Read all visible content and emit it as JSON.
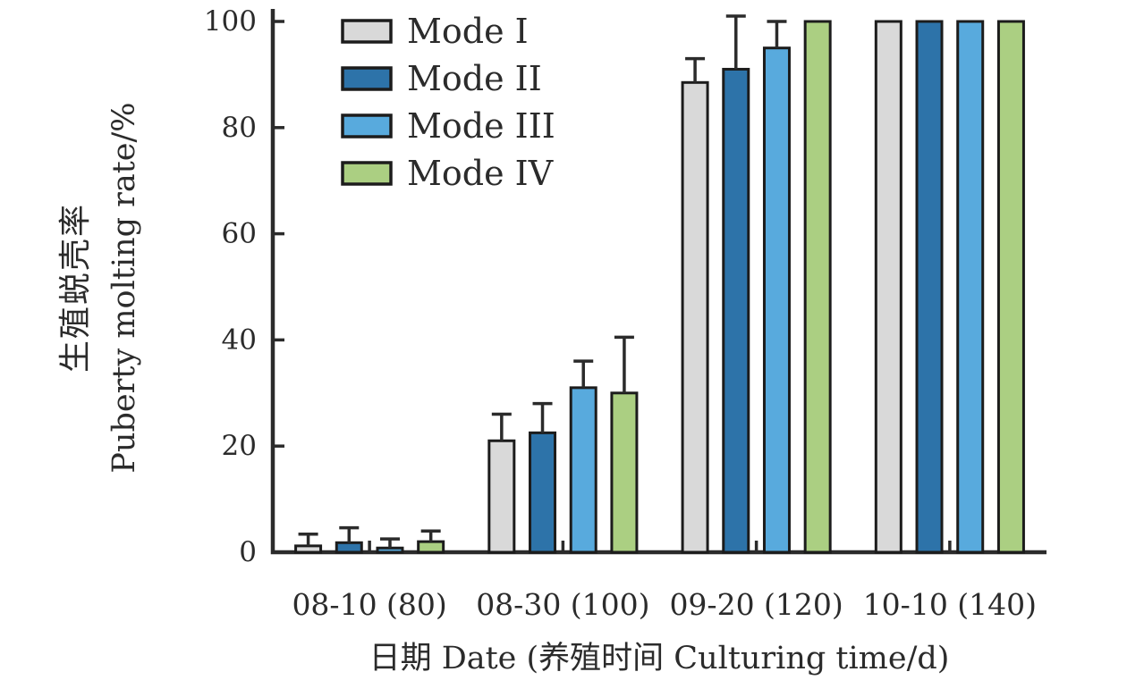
{
  "figure": {
    "background": "#ffffff",
    "axis_color": "#2b2b2b",
    "bar_border_color": "#1c1c1c"
  },
  "chart_data": {
    "type": "bar",
    "title": "",
    "categories": [
      "08-10 (80)",
      "08-30 (100)",
      "09-20 (120)",
      "10-10 (140)"
    ],
    "series": [
      {
        "name": "Mode I",
        "color": "#d9d9d9",
        "values": [
          1.2,
          21,
          88.5,
          100
        ],
        "errors": [
          2.2,
          5,
          4.5,
          0
        ]
      },
      {
        "name": "Mode II",
        "color": "#2d73a9",
        "values": [
          1.8,
          22.5,
          91,
          100
        ],
        "errors": [
          2.8,
          5.5,
          10,
          0
        ]
      },
      {
        "name": "Mode III",
        "color": "#58aadd",
        "values": [
          0.8,
          31,
          95,
          100
        ],
        "errors": [
          1.7,
          5,
          5,
          0
        ]
      },
      {
        "name": "Mode IV",
        "color": "#abcf82",
        "values": [
          2,
          30,
          100,
          100
        ],
        "errors": [
          2,
          10.5,
          0,
          0
        ]
      }
    ],
    "xlabel": "日期 Date (养殖时间 Culturing time/d)",
    "ylabel_lines": [
      "生殖蜕壳率",
      "Puberty molting rate/%"
    ],
    "yticks": [
      0,
      20,
      40,
      60,
      80,
      100
    ],
    "ylim": [
      0,
      100
    ],
    "grid": false,
    "error_bars": "upper",
    "legend_position": "upper-left"
  }
}
